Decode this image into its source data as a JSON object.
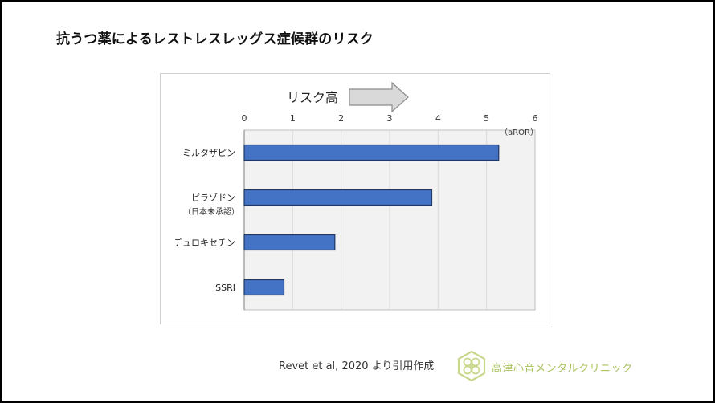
{
  "title": "抗うつ薬によるレストレスレッグス症候群のリスク",
  "arrow_label": "リスク高",
  "citation": "Revet et al, 2020 より引用作成",
  "clinic_name": "高津心音メンタルクリニック",
  "colors": {
    "bar": "#4472c4",
    "bar_edge": "#1f3864",
    "plot_bg": "#f2f2f2",
    "grid": "#d9d9d9",
    "logo": "#c8d88a"
  },
  "chart_data": {
    "type": "bar",
    "orientation": "horizontal",
    "categories": [
      {
        "label": "ミルタザピン",
        "sublabel": ""
      },
      {
        "label": "ピラゾドン",
        "sublabel": "（日本未承認）"
      },
      {
        "label": "デュロキセチン",
        "sublabel": ""
      },
      {
        "label": "SSRI",
        "sublabel": ""
      }
    ],
    "values": [
      5.25,
      3.87,
      1.87,
      0.82
    ],
    "xlim": [
      0,
      6
    ],
    "xticks": [
      "0",
      "1",
      "2",
      "3",
      "4",
      "5",
      "6"
    ],
    "unit_label": "（aROR）",
    "grid": true
  }
}
